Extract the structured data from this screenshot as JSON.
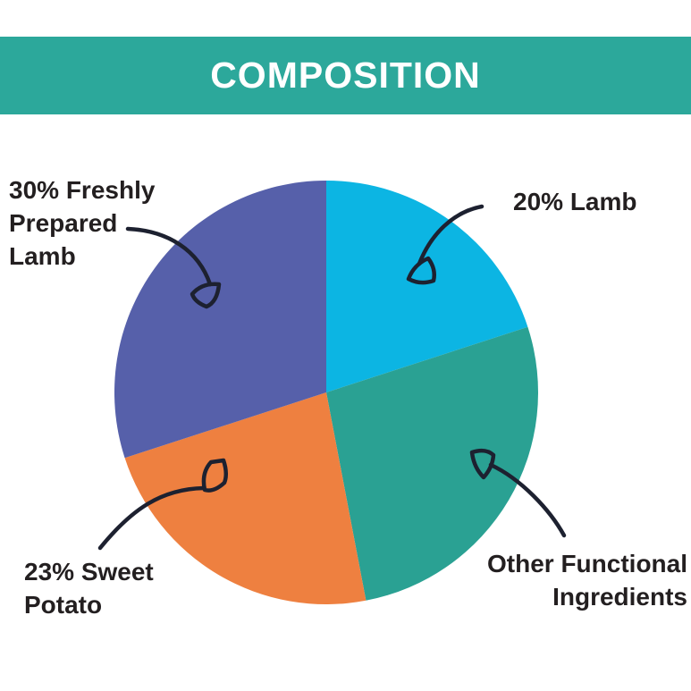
{
  "header": {
    "title": "COMPOSITION",
    "background_color": "#2ca89b",
    "text_color": "#ffffff"
  },
  "chart_data": {
    "type": "pie",
    "title": "COMPOSITION",
    "direction": "clockwise",
    "start_angle_deg": 0,
    "legend_position": "callout-labels-around-pie",
    "segments": [
      {
        "id": "lamb",
        "label": "20% Lamb",
        "value": 20,
        "color": "#0cb5e3"
      },
      {
        "id": "other-functional-ingredients",
        "label": "Other Functional Ingredients",
        "value": 27,
        "color": "#2aa193"
      },
      {
        "id": "sweet-potato",
        "label": "23% Sweet Potato",
        "value": 23,
        "color": "#ee8040"
      },
      {
        "id": "freshly-prepared-lamb",
        "label": "30% Freshly Prepared Lamb",
        "value": 30,
        "color": "#5660aa"
      }
    ]
  },
  "callouts": {
    "freshly_prepared": "30% Freshly\nPrepared\nLamb",
    "lamb": "20% Lamb",
    "sweet_potato": "23% Sweet\nPotato",
    "other_functional": "Other Functional\nIngredients"
  },
  "style_colors": {
    "label_text": "#231f20",
    "arrow": "#1d2130",
    "page_background": "#ffffff"
  }
}
